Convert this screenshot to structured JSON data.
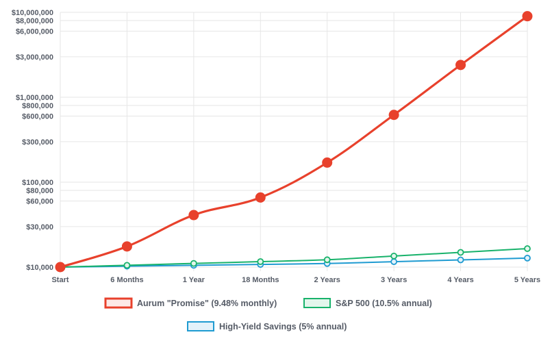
{
  "chart_data": {
    "type": "line",
    "y_scale": "log",
    "grid": true,
    "legend_placement": "bottom",
    "categories": [
      "Start",
      "6 Months",
      "1 Year",
      "18 Months",
      "2 Years",
      "3 Years",
      "4 Years",
      "5 Years"
    ],
    "y_ticks": [
      {
        "value": 10000000,
        "label": "$10,000,000"
      },
      {
        "value": 8000000,
        "label": "$8,000,000"
      },
      {
        "value": 6000000,
        "label": "$6,000,000"
      },
      {
        "value": 3000000,
        "label": "$3,000,000"
      },
      {
        "value": 1000000,
        "label": "$1,000,000"
      },
      {
        "value": 800000,
        "label": "$800,000"
      },
      {
        "value": 600000,
        "label": "$600,000"
      },
      {
        "value": 300000,
        "label": "$300,000"
      },
      {
        "value": 100000,
        "label": "$100,000"
      },
      {
        "value": 80000,
        "label": "$80,000"
      },
      {
        "value": 60000,
        "label": "$60,000"
      },
      {
        "value": 30000,
        "label": "$30,000"
      },
      {
        "value": 10000,
        "label": "$10,000"
      }
    ],
    "ylim": [
      10000,
      10000000
    ],
    "series": [
      {
        "name": "Aurum \"Promise\" (9.48% monthly)",
        "color": "#e8412c",
        "fill": "#fde9e7",
        "values": [
          10000,
          17500,
          41000,
          66000,
          170000,
          620000,
          2400000,
          9000000
        ]
      },
      {
        "name": "S&P 500 (10.5% annual)",
        "color": "#18b26b",
        "fill": "#e3f6ec",
        "values": [
          10000,
          10500,
          11050,
          11600,
          12200,
          13500,
          14900,
          16500
        ]
      },
      {
        "name": "High-Yield Savings (5% annual)",
        "color": "#1f9bd1",
        "fill": "#e3f2fa",
        "values": [
          10000,
          10250,
          10500,
          10750,
          11025,
          11576,
          12155,
          12763
        ]
      }
    ]
  }
}
